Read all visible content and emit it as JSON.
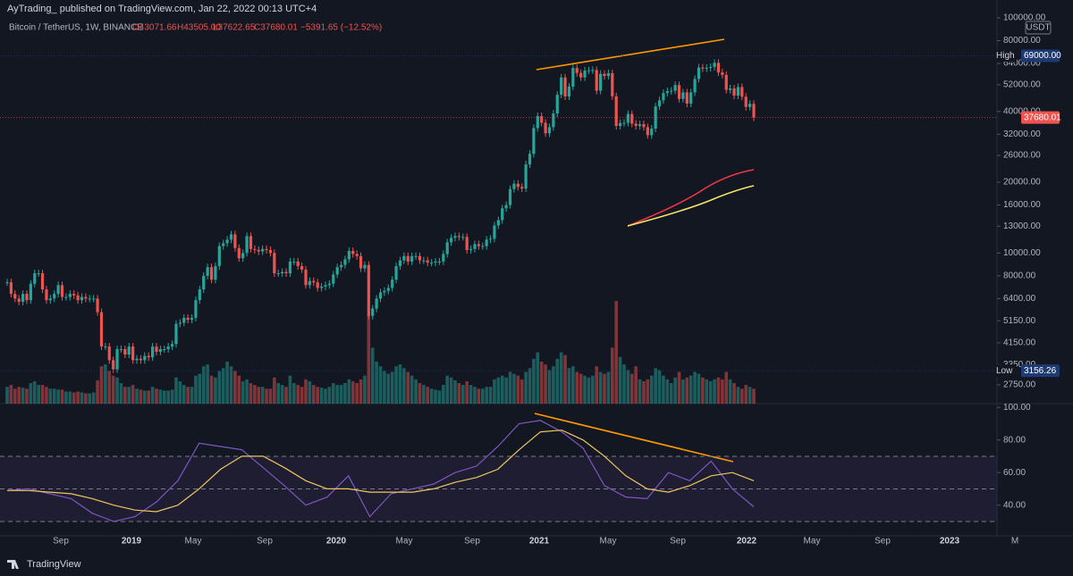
{
  "header": {
    "publisher": "AyTrading_  published on TradingView.com, Jan 22, 2022 00:13 UTC+4",
    "symbol": "Bitcoin / TetherUS, 1W, BINANCE",
    "open": "O43071.66",
    "high": "H43505.00",
    "low": "L37622.65",
    "close": "C37680.01",
    "change": "−5391.65 (−12.52%)"
  },
  "chart_data": {
    "type": "candlestick",
    "log_scale": true,
    "currency": "USDT",
    "up_color": "#26a69a",
    "down_color": "#ef5350",
    "ylim": [
      2287,
      109150
    ],
    "yticks": [
      {
        "value": 100000,
        "label": "100000.00"
      },
      {
        "value": 80000,
        "label": "80000.00"
      },
      {
        "value": 64000,
        "label": "64000.00"
      },
      {
        "value": 52000,
        "label": "52000.00"
      },
      {
        "value": 40000,
        "label": "40000.00"
      },
      {
        "value": 32000,
        "label": "32000.00"
      },
      {
        "value": 26000,
        "label": "26000.00"
      },
      {
        "value": 20000,
        "label": "20000.00"
      },
      {
        "value": 16000,
        "label": "16000.00"
      },
      {
        "value": 13000,
        "label": "13000.00"
      },
      {
        "value": 10000,
        "label": "10000.00"
      },
      {
        "value": 8000,
        "label": "8000.00"
      },
      {
        "value": 6400,
        "label": "6400.00"
      },
      {
        "value": 5150,
        "label": "5150.00"
      },
      {
        "value": 4150,
        "label": "4150.00"
      },
      {
        "value": 3350,
        "label": "3350.00"
      },
      {
        "value": 2750,
        "label": "2750.00"
      }
    ],
    "high_marker": {
      "name": "High",
      "value": 69000,
      "label": "69000.00"
    },
    "low_marker": {
      "name": "Low",
      "value": 3156.26,
      "label": "3156.26"
    },
    "last_marker": {
      "value": 37680.01,
      "label": "37680.01"
    },
    "xlabels": [
      "Sep",
      "2019",
      "May",
      "Sep",
      "2020",
      "May",
      "Sep",
      "2021",
      "May",
      "Sep",
      "2022",
      "May",
      "Sep",
      "2023",
      "M"
    ],
    "closes": [
      7500,
      6700,
      6400,
      6200,
      6700,
      6300,
      7400,
      8200,
      8200,
      7000,
      6300,
      6400,
      6700,
      7300,
      6500,
      6500,
      6700,
      6600,
      6300,
      6500,
      6400,
      6400,
      6400,
      5600,
      4000,
      4000,
      3500,
      3200,
      3900,
      3900,
      3700,
      4000,
      3500,
      3550,
      3500,
      3650,
      3600,
      4000,
      3800,
      3900,
      3900,
      4000,
      4100,
      5000,
      5050,
      5300,
      5200,
      5300,
      6300,
      7000,
      8000,
      8700,
      7700,
      8800,
      10700,
      11000,
      11400,
      12000,
      10500,
      9500,
      10000,
      11800,
      10400,
      10300,
      10150,
      10400,
      10300,
      10000,
      8200,
      8200,
      8300,
      8200,
      9200,
      9200,
      8800,
      8500,
      7300,
      7600,
      7500,
      7100,
      7200,
      7300,
      7400,
      8100,
      8700,
      8900,
      9400,
      10200,
      9900,
      9700,
      8600,
      8900,
      5400,
      5800,
      6400,
      6800,
      6900,
      7100,
      7700,
      8800,
      9300,
      9700,
      9200,
      9700,
      9700,
      9300,
      9300,
      9100,
      9100,
      9200,
      9200,
      9900,
      11100,
      11600,
      11800,
      11700,
      11700,
      10300,
      10400,
      10900,
      10700,
      10700,
      11400,
      11500,
      13100,
      13800,
      15500,
      16000,
      18700,
      19700,
      19100,
      18800,
      23800,
      26400,
      34000,
      38200,
      35800,
      32300,
      34300,
      39200,
      47100,
      55800,
      46300,
      51000,
      61200,
      58300,
      55800,
      59700,
      59800,
      60000,
      49000,
      57800,
      56600,
      58200,
      46400,
      34700,
      35700,
      35800,
      39000,
      35500,
      34700,
      35300,
      34300,
      31700,
      33800,
      42000,
      44600,
      47900,
      48800,
      49000,
      51800,
      45200,
      48200,
      43200,
      48200,
      55000,
      61500,
      60900,
      61300,
      61800,
      64400,
      58600,
      57200,
      49400,
      50100,
      46700,
      50800,
      46200,
      41800,
      43100,
      37680.01
    ],
    "volumes": [
      18,
      20,
      16,
      18,
      17,
      16,
      22,
      24,
      20,
      20,
      18,
      16,
      16,
      15,
      15,
      13,
      13,
      12,
      13,
      12,
      11,
      11,
      12,
      25,
      40,
      42,
      35,
      30,
      28,
      22,
      18,
      18,
      20,
      16,
      15,
      14,
      14,
      18,
      16,
      15,
      14,
      14,
      15,
      28,
      24,
      20,
      18,
      18,
      30,
      32,
      40,
      42,
      30,
      28,
      35,
      38,
      45,
      40,
      35,
      30,
      24,
      26,
      22,
      20,
      18,
      18,
      16,
      16,
      28,
      22,
      20,
      18,
      30,
      22,
      20,
      18,
      26,
      24,
      20,
      18,
      17,
      16,
      18,
      22,
      20,
      20,
      22,
      26,
      24,
      22,
      26,
      30,
      95,
      60,
      45,
      40,
      35,
      32,
      34,
      40,
      42,
      38,
      34,
      30,
      26,
      22,
      20,
      18,
      16,
      15,
      14,
      20,
      30,
      28,
      25,
      22,
      20,
      24,
      20,
      18,
      16,
      16,
      18,
      18,
      26,
      28,
      30,
      28,
      34,
      32,
      30,
      26,
      34,
      38,
      48,
      55,
      45,
      42,
      36,
      40,
      48,
      55,
      52,
      38,
      40,
      34,
      32,
      30,
      28,
      30,
      40,
      34,
      32,
      34,
      60,
      110,
      50,
      42,
      36,
      32,
      40,
      26,
      24,
      26,
      30,
      38,
      36,
      30,
      26,
      22,
      28,
      34,
      26,
      28,
      30,
      34,
      32,
      28,
      26,
      24,
      26,
      28,
      26,
      34,
      26,
      22,
      18,
      16,
      20,
      18,
      16
    ]
  },
  "rsi_chart": {
    "type": "line",
    "ylim": [
      21.2,
      102.3
    ],
    "levels": [
      70,
      50,
      30
    ],
    "yticks": [
      {
        "value": 100,
        "label": "100.00"
      },
      {
        "value": 80,
        "label": "80.00"
      },
      {
        "value": 60,
        "label": "60.00"
      },
      {
        "value": 40,
        "label": "40.00"
      }
    ],
    "series": [
      {
        "color": "#7e57c2",
        "values": [
          49,
          50,
          47,
          44,
          35,
          30,
          33,
          42,
          55,
          78,
          76,
          74,
          63,
          52,
          40,
          45,
          58,
          33,
          47,
          50,
          53,
          60,
          64,
          76,
          90,
          92,
          85,
          75,
          52,
          45,
          44,
          60,
          55,
          67,
          50,
          39
        ]
      },
      {
        "color": "#f0c75e",
        "values": [
          49,
          49,
          48,
          47,
          44,
          40,
          37,
          36,
          40,
          50,
          62,
          70,
          70,
          63,
          55,
          50,
          50,
          48,
          48,
          48,
          50,
          54,
          57,
          62,
          74,
          85,
          86,
          80,
          70,
          58,
          50,
          48,
          52,
          58,
          60,
          55
        ]
      }
    ]
  },
  "footer": {
    "brand": "TradingView"
  }
}
